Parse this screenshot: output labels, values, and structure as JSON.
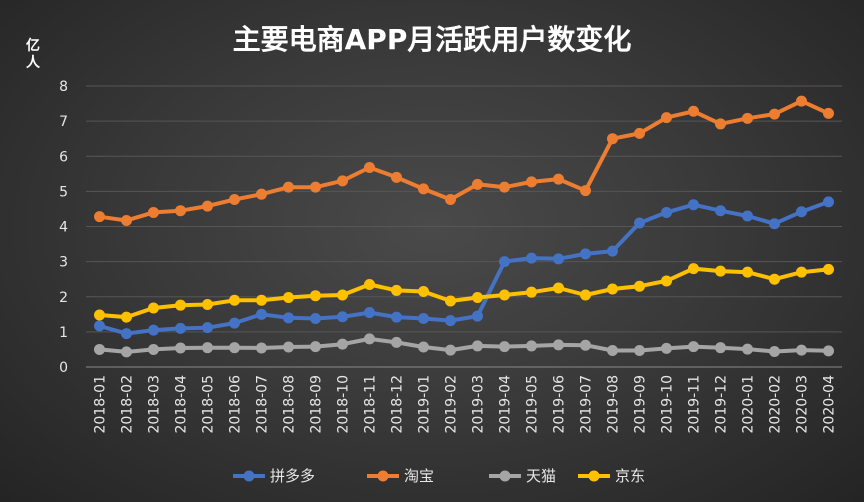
{
  "colors": {
    "background": "#3a3a3a",
    "pinduoduo": "#4472c4",
    "taobao": "#ed7d31",
    "tmall": "#a5a5a5",
    "jd": "#ffc000"
  },
  "chart_data": {
    "type": "line",
    "title": "主要电商APP月活跃用户数变化",
    "unit_label": [
      "亿",
      "人"
    ],
    "ylim": [
      0,
      8
    ],
    "yticks": [
      0,
      1,
      2,
      3,
      4,
      5,
      6,
      7,
      8
    ],
    "grid": true,
    "legend_position": "bottom",
    "categories": [
      "2018-01",
      "2018-02",
      "2018-03",
      "2018-04",
      "2018-05",
      "2018-06",
      "2018-07",
      "2018-08",
      "2018-09",
      "2018-10",
      "2018-11",
      "2018-12",
      "2019-01",
      "2019-02",
      "2019-03",
      "2019-04",
      "2019-05",
      "2019-06",
      "2019-07",
      "2019-08",
      "2019-09",
      "2019-10",
      "2019-11",
      "2019-12",
      "2020-01",
      "2020-02",
      "2020-03",
      "2020-04"
    ],
    "series": [
      {
        "name": "拼多多",
        "color": "#4472c4",
        "values": [
          1.17,
          0.95,
          1.05,
          1.1,
          1.12,
          1.25,
          1.5,
          1.4,
          1.38,
          1.43,
          1.55,
          1.42,
          1.38,
          1.32,
          1.45,
          3.0,
          3.1,
          3.08,
          3.22,
          3.3,
          4.1,
          4.4,
          4.62,
          4.45,
          4.3,
          4.08,
          4.42,
          4.7
        ]
      },
      {
        "name": "淘宝",
        "color": "#ed7d31",
        "values": [
          4.28,
          4.17,
          4.4,
          4.45,
          4.58,
          4.77,
          4.92,
          5.12,
          5.12,
          5.3,
          5.68,
          5.4,
          5.07,
          4.77,
          5.2,
          5.12,
          5.27,
          5.35,
          5.02,
          6.5,
          6.65,
          7.1,
          7.28,
          6.92,
          7.08,
          7.2,
          7.57,
          7.22
        ]
      },
      {
        "name": "天猫",
        "color": "#a5a5a5",
        "values": [
          0.5,
          0.43,
          0.5,
          0.54,
          0.55,
          0.55,
          0.54,
          0.57,
          0.58,
          0.65,
          0.8,
          0.7,
          0.57,
          0.48,
          0.6,
          0.58,
          0.6,
          0.63,
          0.62,
          0.47,
          0.47,
          0.53,
          0.58,
          0.55,
          0.51,
          0.44,
          0.48,
          0.46
        ]
      },
      {
        "name": "京东",
        "color": "#ffc000",
        "values": [
          1.48,
          1.42,
          1.68,
          1.76,
          1.78,
          1.9,
          1.9,
          1.98,
          2.03,
          2.05,
          2.35,
          2.18,
          2.15,
          1.88,
          1.98,
          2.05,
          2.13,
          2.25,
          2.05,
          2.22,
          2.3,
          2.45,
          2.8,
          2.73,
          2.7,
          2.5,
          2.7,
          2.78
        ]
      }
    ]
  }
}
